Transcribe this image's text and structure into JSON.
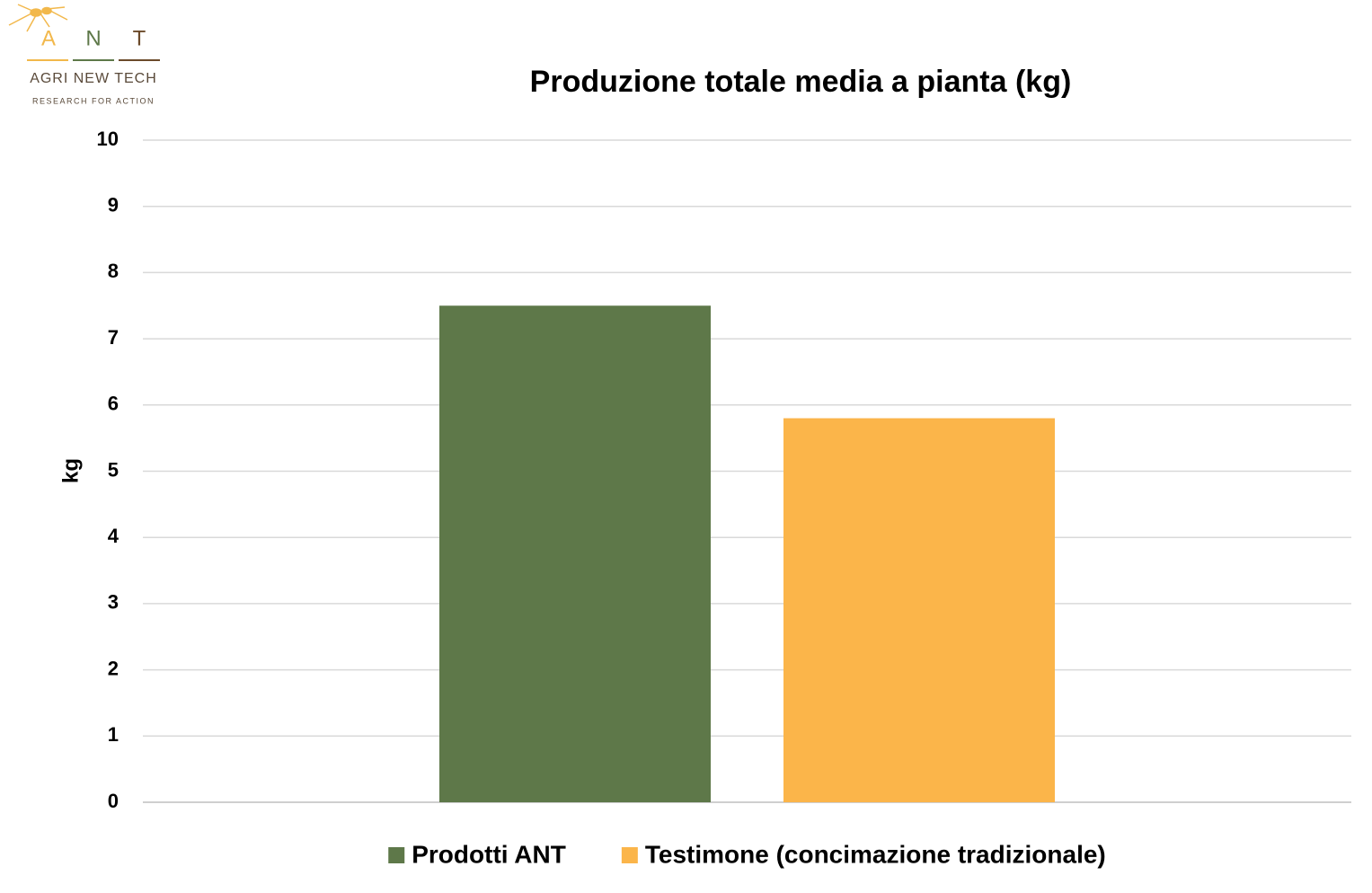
{
  "logo": {
    "letters": [
      "A",
      "N",
      "T"
    ],
    "name": "AGRI NEW TECH",
    "tagline": "RESEARCH FOR ACTION"
  },
  "chart_data": {
    "type": "bar",
    "title": "Produzione totale media a pianta (kg)",
    "y_label": "kg",
    "categories": [
      null
    ],
    "series": [
      {
        "name": "Prodotti ANT",
        "color": "#5e7849",
        "values": [
          7.5
        ]
      },
      {
        "name": "Testimone (concimazione tradizionale)",
        "color": "#fbb54a",
        "values": [
          5.8
        ]
      }
    ],
    "ylim": [
      0,
      10
    ],
    "yticks": [
      0,
      1,
      2,
      3,
      4,
      5,
      6,
      7,
      8,
      9,
      10
    ],
    "grid": true,
    "legend": "bottom"
  }
}
